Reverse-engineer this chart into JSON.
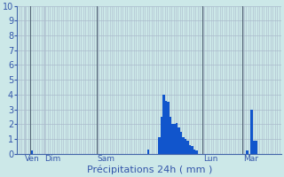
{
  "xlabel": "Précipitations 24h ( mm )",
  "ylim": [
    0,
    10
  ],
  "yticks": [
    0,
    1,
    2,
    3,
    4,
    5,
    6,
    7,
    8,
    9,
    10
  ],
  "background_color": "#cce8e8",
  "bar_color": "#1155cc",
  "grid_color": "#aabbcc",
  "axis_color": "#4466aa",
  "tick_color": "#3355aa",
  "label_color": "#3355aa",
  "n_bars": 120,
  "day_labels": [
    "Ven",
    "Dim",
    "Sam",
    "Lun",
    "Mar"
  ],
  "day_tick_positions": [
    3,
    12,
    36,
    84,
    102
  ],
  "vline_positions": [
    6,
    36,
    84,
    102
  ],
  "bar_values": [
    0,
    0,
    0,
    0,
    0,
    0,
    0.2,
    0,
    0,
    0,
    0,
    0,
    0,
    0,
    0,
    0,
    0,
    0,
    0,
    0,
    0,
    0,
    0,
    0,
    0,
    0,
    0,
    0,
    0,
    0,
    0,
    0,
    0,
    0,
    0,
    0,
    0,
    0,
    0,
    0,
    0,
    0,
    0,
    0,
    0,
    0,
    0,
    0,
    0,
    0,
    0,
    0,
    0,
    0,
    0,
    0,
    0,
    0,
    0,
    0.3,
    0,
    0,
    0,
    0,
    1.1,
    2.5,
    4.0,
    3.6,
    3.5,
    2.5,
    2.0,
    2.0,
    2.1,
    1.8,
    1.5,
    1.1,
    1.0,
    0.9,
    0.6,
    0.5,
    0.3,
    0.2,
    0,
    0,
    0,
    0,
    0,
    0,
    0,
    0,
    0,
    0,
    0,
    0,
    0,
    0,
    0,
    0,
    0,
    0,
    0,
    0,
    0,
    0,
    0.2,
    0,
    3.0,
    0.9,
    0.9,
    0,
    0,
    0,
    0,
    0,
    0,
    0,
    0,
    0,
    0,
    0,
    0,
    0,
    0,
    0,
    0,
    0
  ]
}
